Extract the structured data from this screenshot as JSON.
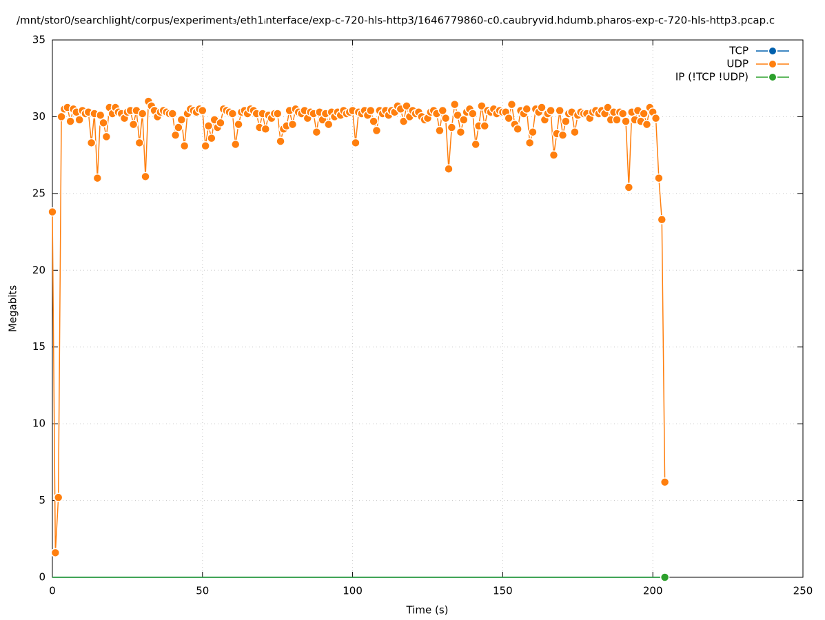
{
  "chart_data": {
    "type": "line",
    "title": "/mnt/stor0/searchlight/corpus/experiment₃/eth1ᵢnterface/exp-c-720-hls-http3/1646779860-c0.caubryvid.hdumb.pharos-exp-c-720-hls-http3.pcap.c",
    "x_label": "Time (s)",
    "y_label": "Megabits",
    "xlim": [
      0,
      250
    ],
    "xticks": [
      0,
      50,
      100,
      150,
      200,
      250
    ],
    "ylim": [
      0,
      35
    ],
    "yticks": [
      0,
      5,
      10,
      15,
      20,
      25,
      30,
      35
    ],
    "grid": true,
    "legend": "top-right",
    "x": [
      0,
      1,
      2,
      3,
      4,
      5,
      6,
      7,
      8,
      9,
      10,
      11,
      12,
      13,
      14,
      15,
      16,
      17,
      18,
      19,
      20,
      21,
      22,
      23,
      24,
      25,
      26,
      27,
      28,
      29,
      30,
      31,
      32,
      33,
      34,
      35,
      36,
      37,
      38,
      39,
      40,
      41,
      42,
      43,
      44,
      45,
      46,
      47,
      48,
      49,
      50,
      51,
      52,
      53,
      54,
      55,
      56,
      57,
      58,
      59,
      60,
      61,
      62,
      63,
      64,
      65,
      66,
      67,
      68,
      69,
      70,
      71,
      72,
      73,
      74,
      75,
      76,
      77,
      78,
      79,
      80,
      81,
      82,
      83,
      84,
      85,
      86,
      87,
      88,
      89,
      90,
      91,
      92,
      93,
      94,
      95,
      96,
      97,
      98,
      99,
      100,
      101,
      102,
      103,
      104,
      105,
      106,
      107,
      108,
      109,
      110,
      111,
      112,
      113,
      114,
      115,
      116,
      117,
      118,
      119,
      120,
      121,
      122,
      123,
      124,
      125,
      126,
      127,
      128,
      129,
      130,
      131,
      132,
      133,
      134,
      135,
      136,
      137,
      138,
      139,
      140,
      141,
      142,
      143,
      144,
      145,
      146,
      147,
      148,
      149,
      150,
      151,
      152,
      153,
      154,
      155,
      156,
      157,
      158,
      159,
      160,
      161,
      162,
      163,
      164,
      165,
      166,
      167,
      168,
      169,
      170,
      171,
      172,
      173,
      174,
      175,
      176,
      177,
      178,
      179,
      180,
      181,
      182,
      183,
      184,
      185,
      186,
      187,
      188,
      189,
      190,
      191,
      192,
      193,
      194,
      195,
      196,
      197,
      198,
      199,
      200,
      201,
      202,
      203,
      204
    ],
    "series": [
      {
        "name": "TCP",
        "color": "#0060ad",
        "values": [
          0,
          0,
          0,
          0,
          0,
          0,
          0,
          0,
          0,
          0,
          0,
          0,
          0,
          0,
          0,
          0,
          0,
          0,
          0,
          0,
          0,
          0,
          0,
          0,
          0,
          0,
          0,
          0,
          0,
          0,
          0,
          0,
          0,
          0,
          0,
          0,
          0,
          0,
          0,
          0,
          0,
          0,
          0,
          0,
          0,
          0,
          0,
          0,
          0,
          0,
          0,
          0,
          0,
          0,
          0,
          0,
          0,
          0,
          0,
          0,
          0,
          0,
          0,
          0,
          0,
          0,
          0,
          0,
          0,
          0,
          0,
          0,
          0,
          0,
          0,
          0,
          0,
          0,
          0,
          0,
          0,
          0,
          0,
          0,
          0,
          0,
          0,
          0,
          0,
          0,
          0,
          0,
          0,
          0,
          0,
          0,
          0,
          0,
          0,
          0,
          0,
          0,
          0,
          0,
          0,
          0,
          0,
          0,
          0,
          0,
          0,
          0,
          0,
          0,
          0,
          0,
          0,
          0,
          0,
          0,
          0,
          0,
          0,
          0,
          0,
          0,
          0,
          0,
          0,
          0,
          0,
          0,
          0,
          0,
          0,
          0,
          0,
          0,
          0,
          0,
          0,
          0,
          0,
          0,
          0,
          0,
          0,
          0,
          0,
          0,
          0,
          0,
          0,
          0,
          0,
          0,
          0,
          0,
          0,
          0,
          0,
          0,
          0,
          0,
          0,
          0,
          0,
          0,
          0,
          0,
          0,
          0,
          0,
          0,
          0,
          0,
          0,
          0,
          0,
          0,
          0,
          0,
          0,
          0,
          0,
          0,
          0,
          0,
          0,
          0,
          0,
          0,
          0,
          0,
          0,
          0,
          0,
          0,
          0,
          0,
          0,
          0,
          0,
          0,
          0
        ]
      },
      {
        "name": "UDP",
        "color": "#ff7f0e",
        "values": [
          23.8,
          1.6,
          5.2,
          30.0,
          30.5,
          30.6,
          29.7,
          30.5,
          30.3,
          29.8,
          30.4,
          30.2,
          30.3,
          28.3,
          30.2,
          26.0,
          30.1,
          29.6,
          28.7,
          30.6,
          30.2,
          30.6,
          30.3,
          30.2,
          29.9,
          30.3,
          30.4,
          29.5,
          30.4,
          28.3,
          30.2,
          26.1,
          31.0,
          30.7,
          30.4,
          30.0,
          30.3,
          30.4,
          30.3,
          30.2,
          30.2,
          28.8,
          29.3,
          29.8,
          28.1,
          30.2,
          30.5,
          30.4,
          30.3,
          30.5,
          30.4,
          28.1,
          29.4,
          28.6,
          29.8,
          29.3,
          29.6,
          30.5,
          30.4,
          30.3,
          30.2,
          28.2,
          29.5,
          30.3,
          30.4,
          30.2,
          30.5,
          30.4,
          30.2,
          29.3,
          30.2,
          29.2,
          30.1,
          29.9,
          30.2,
          30.2,
          28.4,
          29.2,
          29.4,
          30.4,
          29.5,
          30.5,
          30.3,
          30.2,
          30.4,
          29.9,
          30.3,
          30.2,
          29.0,
          30.3,
          29.8,
          30.2,
          29.5,
          30.3,
          30.0,
          30.3,
          30.1,
          30.4,
          30.2,
          30.3,
          30.4,
          28.3,
          30.3,
          30.2,
          30.4,
          30.1,
          30.4,
          29.7,
          29.1,
          30.4,
          30.2,
          30.4,
          30.1,
          30.4,
          30.3,
          30.7,
          30.5,
          29.7,
          30.7,
          30.0,
          30.4,
          30.2,
          30.3,
          30.0,
          29.8,
          29.9,
          30.3,
          30.4,
          30.2,
          29.1,
          30.4,
          29.9,
          26.6,
          29.3,
          30.8,
          30.1,
          29.0,
          29.8,
          30.3,
          30.5,
          30.2,
          28.2,
          29.4,
          30.7,
          29.4,
          30.4,
          30.3,
          30.5,
          30.2,
          30.4,
          30.3,
          30.3,
          29.9,
          30.8,
          29.5,
          29.2,
          30.4,
          30.2,
          30.5,
          28.3,
          29.0,
          30.5,
          30.3,
          30.6,
          29.8,
          30.2,
          30.4,
          27.5,
          28.9,
          30.4,
          28.8,
          29.7,
          30.2,
          30.3,
          29.0,
          30.1,
          30.3,
          30.2,
          30.2,
          29.9,
          30.3,
          30.4,
          30.2,
          30.4,
          30.2,
          30.6,
          29.8,
          30.3,
          29.8,
          30.3,
          30.2,
          29.7,
          25.4,
          30.3,
          29.8,
          30.4,
          29.7,
          30.2,
          29.5,
          30.6,
          30.3,
          29.9,
          26.0,
          23.3,
          6.2
        ]
      },
      {
        "name": "IP (!TCP  !UDP)",
        "color": "#2ca02c",
        "values": [
          0,
          0,
          0,
          0,
          0,
          0,
          0,
          0,
          0,
          0,
          0,
          0,
          0,
          0,
          0,
          0,
          0,
          0,
          0,
          0,
          0,
          0,
          0,
          0,
          0,
          0,
          0,
          0,
          0,
          0,
          0,
          0,
          0,
          0,
          0,
          0,
          0,
          0,
          0,
          0,
          0,
          0,
          0,
          0,
          0,
          0,
          0,
          0,
          0,
          0,
          0,
          0,
          0,
          0,
          0,
          0,
          0,
          0,
          0,
          0,
          0,
          0,
          0,
          0,
          0,
          0,
          0,
          0,
          0,
          0,
          0,
          0,
          0,
          0,
          0,
          0,
          0,
          0,
          0,
          0,
          0,
          0,
          0,
          0,
          0,
          0,
          0,
          0,
          0,
          0,
          0,
          0,
          0,
          0,
          0,
          0,
          0,
          0,
          0,
          0,
          0,
          0,
          0,
          0,
          0,
          0,
          0,
          0,
          0,
          0,
          0,
          0,
          0,
          0,
          0,
          0,
          0,
          0,
          0,
          0,
          0,
          0,
          0,
          0,
          0,
          0,
          0,
          0,
          0,
          0,
          0,
          0,
          0,
          0,
          0,
          0,
          0,
          0,
          0,
          0,
          0,
          0,
          0,
          0,
          0,
          0,
          0,
          0,
          0,
          0,
          0,
          0,
          0,
          0,
          0,
          0,
          0,
          0,
          0,
          0,
          0,
          0,
          0,
          0,
          0,
          0,
          0,
          0,
          0,
          0,
          0,
          0,
          0,
          0,
          0,
          0,
          0,
          0,
          0,
          0,
          0,
          0,
          0,
          0,
          0,
          0,
          0,
          0,
          0,
          0,
          0,
          0,
          0,
          0,
          0,
          0,
          0,
          0,
          0,
          0,
          0,
          0,
          0,
          0,
          0
        ]
      }
    ]
  }
}
